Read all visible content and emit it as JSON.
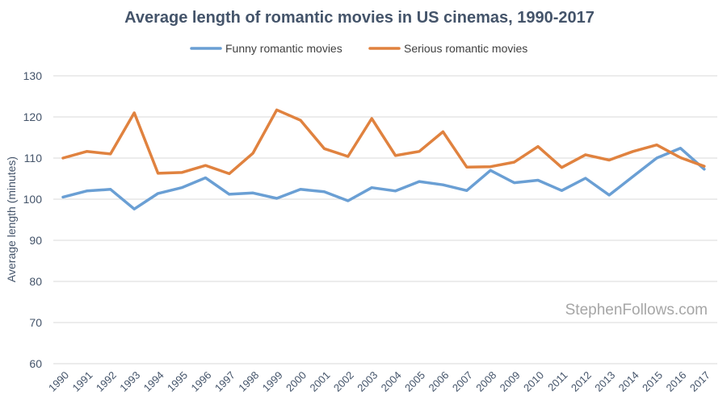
{
  "chart_data": {
    "type": "line",
    "title": "Average length of romantic movies in US cinemas, 1990-2017",
    "xlabel": "",
    "ylabel": "Average length (minutes)",
    "ylim": [
      60,
      130
    ],
    "yticks": [
      60,
      70,
      80,
      90,
      100,
      110,
      120,
      130
    ],
    "grid": true,
    "legend_position": "top-center",
    "categories": [
      "1990",
      "1991",
      "1992",
      "1993",
      "1994",
      "1995",
      "1996",
      "1997",
      "1998",
      "1999",
      "2000",
      "2001",
      "2002",
      "2003",
      "2004",
      "2005",
      "2006",
      "2007",
      "2008",
      "2009",
      "2010",
      "2011",
      "2012",
      "2013",
      "2014",
      "2015",
      "2016",
      "2017"
    ],
    "series": [
      {
        "name": "Funny romantic movies",
        "color": "#6a9fd4",
        "values": [
          100.5,
          102.0,
          102.4,
          97.6,
          101.4,
          102.8,
          105.2,
          101.2,
          101.5,
          100.2,
          102.4,
          101.8,
          99.6,
          102.8,
          102.0,
          104.3,
          103.5,
          102.1,
          107.0,
          104.0,
          104.6,
          102.1,
          105.1,
          101.0,
          105.5,
          110.0,
          112.4,
          107.3
        ]
      },
      {
        "name": "Serious romantic movies",
        "color": "#e0823f",
        "values": [
          110.0,
          111.6,
          111.0,
          121.0,
          106.3,
          106.5,
          108.2,
          106.2,
          111.2,
          121.7,
          119.2,
          112.3,
          110.4,
          119.6,
          110.6,
          111.6,
          116.4,
          107.8,
          107.9,
          109.0,
          112.8,
          107.7,
          110.8,
          109.5,
          111.6,
          113.2,
          110.1,
          108.0
        ]
      }
    ]
  },
  "watermark": "StephenFollows.com"
}
